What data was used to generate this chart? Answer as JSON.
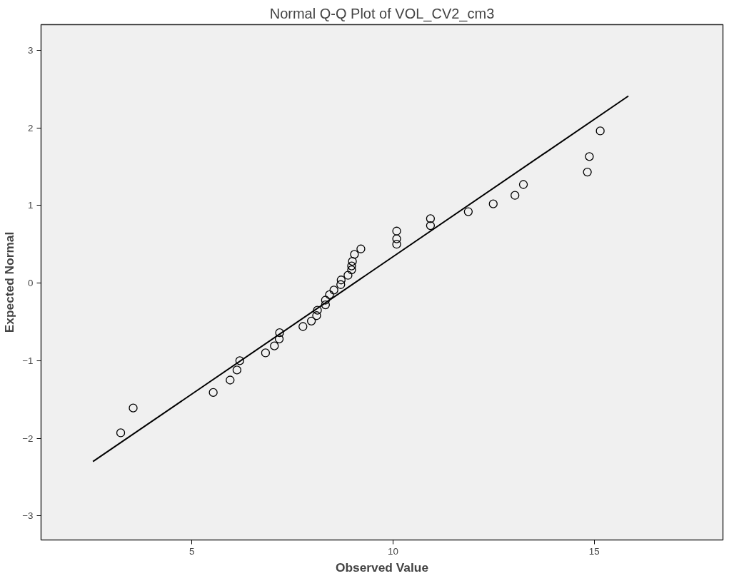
{
  "chart_data": {
    "type": "scatter",
    "title": "Normal Q-Q Plot of VOL_CV2_cm3",
    "xlabel": "Observed Value",
    "ylabel": "Expected Normal",
    "xlim": [
      1.25,
      18.2
    ],
    "ylim": [
      -3.31,
      3.33
    ],
    "xticks": [
      5,
      10,
      15
    ],
    "yticks": [
      -3,
      -2,
      -1,
      0,
      1,
      2,
      3
    ],
    "grid": false,
    "marker": "circle",
    "series": [
      {
        "color": "#000000",
        "x": [
          3.23,
          3.54,
          5.53,
          5.95,
          6.12,
          6.19,
          6.83,
          7.05,
          7.17,
          7.18,
          7.76,
          7.97,
          8.1,
          8.12,
          8.32,
          8.32,
          8.42,
          8.53,
          8.7,
          8.71,
          8.88,
          8.97,
          8.97,
          8.99,
          9.04,
          9.2,
          10.09,
          10.09,
          10.09,
          10.93,
          10.93,
          11.87,
          12.49,
          13.03,
          13.24,
          14.83,
          14.88,
          15.15
        ],
        "values": [
          -1.93,
          -1.61,
          -1.41,
          -1.25,
          -1.12,
          -1.0,
          -0.9,
          -0.81,
          -0.72,
          -0.64,
          -0.56,
          -0.49,
          -0.42,
          -0.35,
          -0.28,
          -0.22,
          -0.15,
          -0.09,
          -0.02,
          0.04,
          0.1,
          0.17,
          0.22,
          0.28,
          0.37,
          0.44,
          0.5,
          0.57,
          0.67,
          0.74,
          0.83,
          0.92,
          1.02,
          1.13,
          1.27,
          1.43,
          1.63,
          1.96
        ]
      },
      {
        "type": "line",
        "marker": "none",
        "color": "#000000",
        "x": [
          2.54,
          15.85
        ],
        "values": [
          -2.3,
          2.41
        ]
      }
    ]
  }
}
